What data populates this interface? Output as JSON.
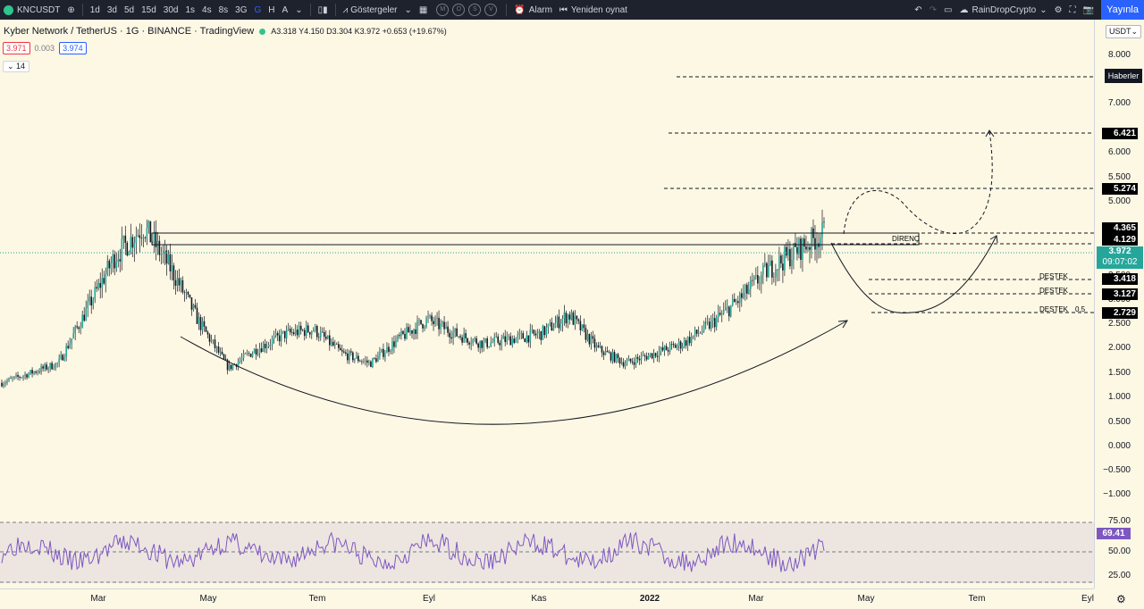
{
  "toolbar": {
    "symbol": "KNCUSDT",
    "intervals": [
      "1d",
      "3d",
      "5d",
      "15d",
      "30d",
      "1s",
      "4s",
      "8s",
      "3G",
      "G",
      "H",
      "A"
    ],
    "active_interval": "G",
    "indicators_label": "Göstergeler",
    "template_circles": [
      "M",
      "O",
      "S",
      "V"
    ],
    "alarm_label": "Alarm",
    "replay_label": "Yeniden oynat",
    "layout_name": "RainDropCrypto",
    "publish_label": "Yayınla"
  },
  "legend": {
    "title": "Kyber Network / TetherUS · 1G · BINANCE · TradingView",
    "ohlc": "A3.318  Y4.150  D3.304  K3.972  +0.653 (+19.67%)",
    "sell_price": "3.971",
    "spread": "0.003",
    "buy_price": "3.974",
    "collapse_count": "14"
  },
  "price_axis": {
    "currency": "USDT",
    "ticks": [
      "8.000",
      "7.000",
      "6.000",
      "5.500",
      "5.000",
      "4.500",
      "4.000",
      "3.500",
      "3.000",
      "2.500",
      "2.000",
      "1.500",
      "1.000",
      "0.500",
      "0.000",
      "−0.500",
      "−1.000"
    ],
    "labels": [
      "6.421",
      "5.274",
      "4.365",
      "4.129",
      "3.418",
      "3.127",
      "2.729"
    ],
    "news_label": "Haberler",
    "current_price": "3.972",
    "countdown": "09:07:02",
    "rsi_ticks": [
      "75.00",
      "50.00",
      "25.00"
    ],
    "rsi_value": "69.41"
  },
  "annotations": {
    "resistance": "DİRENÇ",
    "support1": "DESTEK",
    "support2": "DESTEK",
    "support3": "DESTEK",
    "fib": "0.5"
  },
  "time_axis": [
    "Mar",
    "May",
    "Tem",
    "Eyl",
    "Kas",
    "2022",
    "Mar",
    "May",
    "Tem",
    "Eyl"
  ],
  "colors": {
    "up": "#26a69a",
    "down": "#ef5350",
    "candle": "#131722",
    "rsi": "#7e57c2",
    "bg": "#fdf8e4",
    "toolbar": "#1e222d",
    "accent": "#2962ff"
  },
  "chart_data": {
    "type": "candlestick",
    "series": [
      {
        "name": "KNCUSDT",
        "close_trend": [
          0.9,
          1.1,
          1.3,
          2.4,
          3.5,
          4.1,
          3.2,
          2.1,
          1.2,
          1.6,
          1.9,
          2.0,
          1.5,
          1.3,
          1.8,
          2.2,
          1.9,
          1.7,
          1.8,
          1.9,
          2.3,
          1.6,
          1.3,
          1.5,
          1.7,
          2.1,
          2.6,
          3.2,
          3.6,
          3.972
        ]
      }
    ],
    "ylim": [
      -1.0,
      8.0
    ],
    "rsi": {
      "value": 69.41,
      "levels": [
        75,
        50,
        25
      ]
    }
  }
}
